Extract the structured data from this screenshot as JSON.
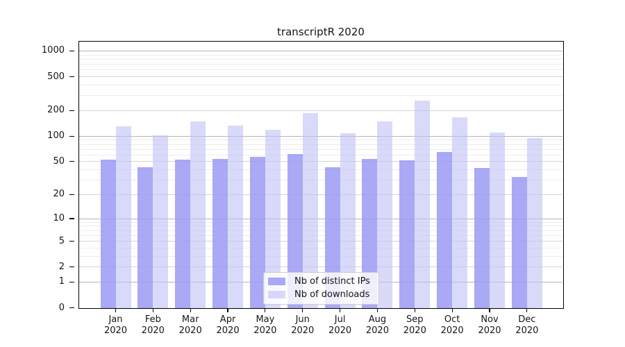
{
  "title": "transcriptR 2020",
  "chart_data": {
    "type": "bar",
    "title": "transcriptR 2020",
    "categories": [
      "Jan",
      "Feb",
      "Mar",
      "Apr",
      "May",
      "Jun",
      "Jul",
      "Aug",
      "Sep",
      "Oct",
      "Nov",
      "Dec"
    ],
    "x_tick_year": "2020",
    "series": [
      {
        "name": "Nb of distinct IPs",
        "color": "rgba(154,154,243,0.85)",
        "values": [
          53,
          43,
          53,
          54,
          57,
          61,
          43,
          54,
          52,
          65,
          42,
          33
        ]
      },
      {
        "name": "Nb of downloads",
        "color": "rgba(192,192,247,0.6)",
        "values": [
          131,
          103,
          150,
          133,
          119,
          187,
          108,
          150,
          260,
          167,
          110,
          95
        ]
      }
    ],
    "xlabel": "",
    "ylabel": "",
    "y_scale": "symlog-log1p",
    "y_ticks": [
      0,
      1,
      2,
      5,
      10,
      20,
      50,
      100,
      200,
      500,
      1000
    ],
    "y_minor_ticks": [
      3,
      4,
      6,
      7,
      8,
      9,
      30,
      40,
      60,
      70,
      80,
      90,
      300,
      400,
      600,
      700,
      800,
      900
    ],
    "ylim": [
      0,
      1280
    ],
    "grid": true,
    "legend_position": "bottom-center",
    "bar_colors": {
      "distinct_ips_hex": "#a9a9f5",
      "downloads_hex": "#d9d9fa"
    }
  }
}
